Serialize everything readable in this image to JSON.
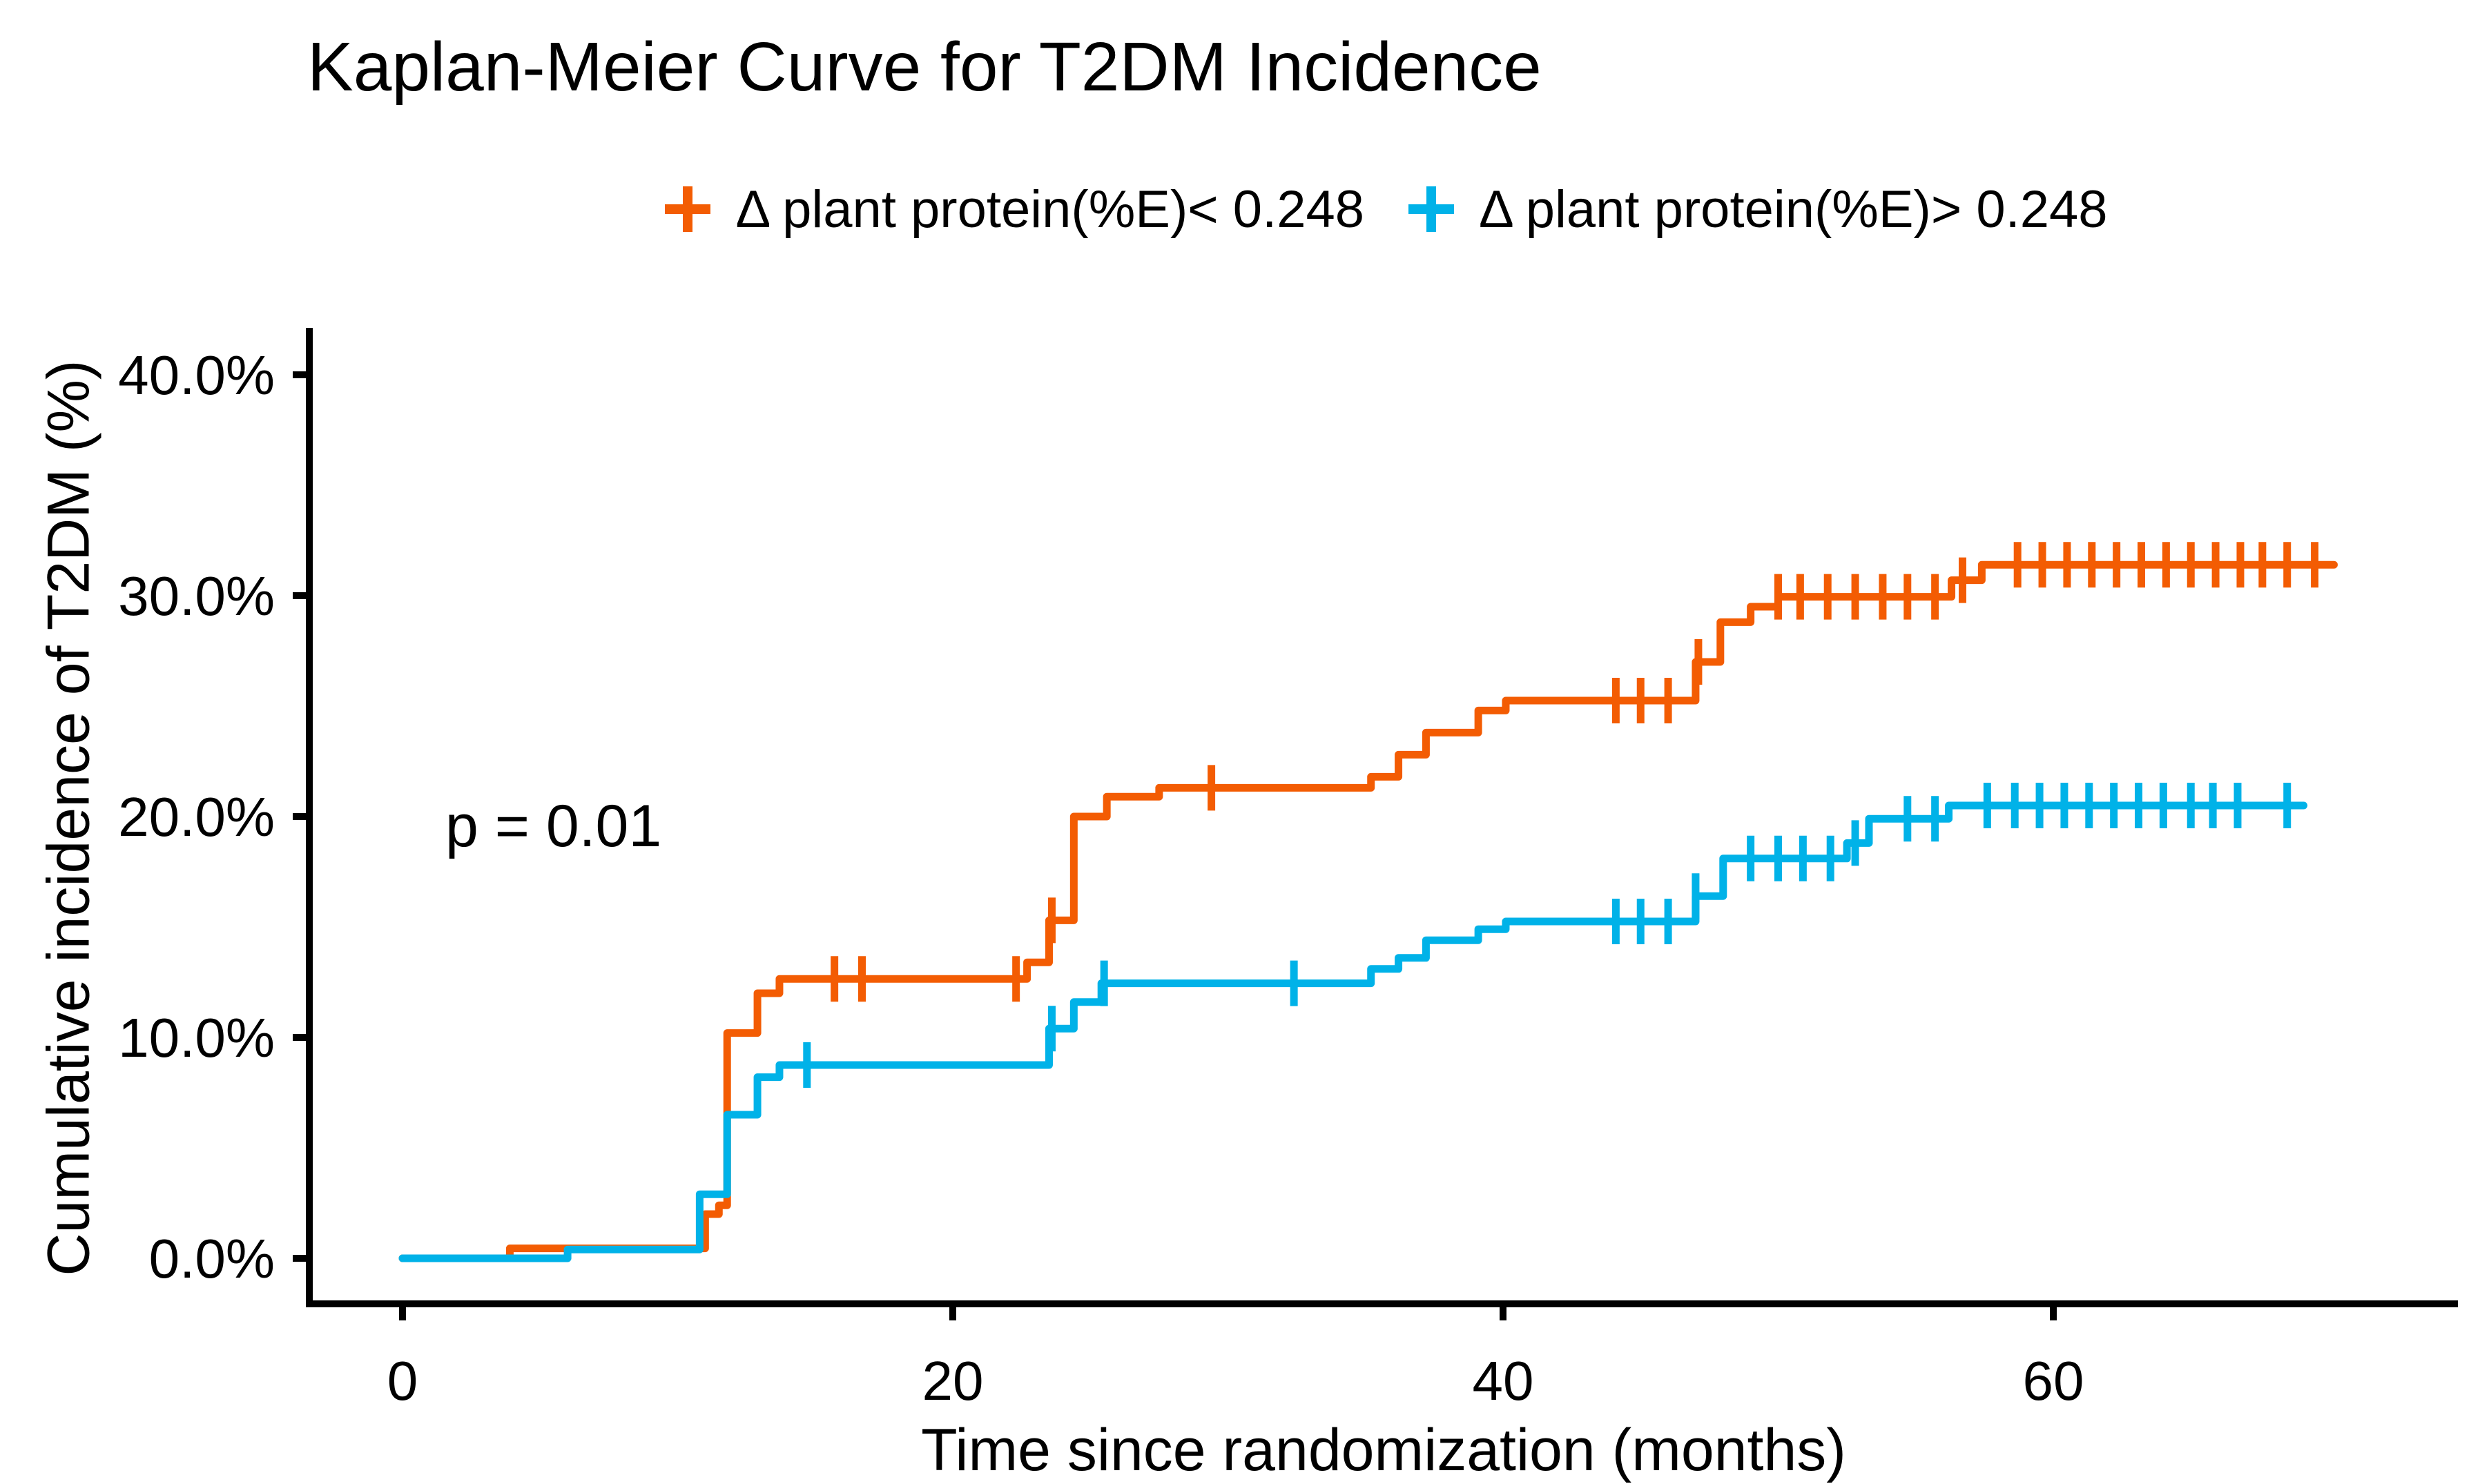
{
  "figure": {
    "title": "Kaplan-Meier Curve for T2DM Incidence",
    "p_value_label": "p = 0.01",
    "background": "#FFFFFF",
    "axis_color": "#000000",
    "text_color": "#000000"
  },
  "chart_data": {
    "type": "line",
    "subtype": "kaplan-meier-step-curve",
    "title": "Kaplan-Meier Curve for T2DM Incidence",
    "xlabel": "Time since randomization (months)",
    "ylabel": "Cumulative incidence of T2DM (%)",
    "xlim": [
      0,
      74
    ],
    "ylim": [
      0,
      42
    ],
    "grid": false,
    "legend_position": "top",
    "xticks": {
      "values": [
        0,
        20,
        40,
        60
      ],
      "labels": [
        "0",
        "20",
        "40",
        "60"
      ]
    },
    "yticks": {
      "values": [
        0,
        10,
        20,
        30,
        40
      ],
      "labels": [
        "0.0%",
        "10.0%",
        "20.0%",
        "30.0%",
        "40.0%"
      ]
    },
    "annotations": [
      {
        "text": "p = 0.01",
        "x_month": 1.6,
        "y_percent": 19.5
      }
    ],
    "series": [
      {
        "name": "Δ plant protein(%E)< 0.248",
        "color": "#F35C03",
        "marker": "plus-censor",
        "end_month": 70.2,
        "steps": [
          [
            0,
            0
          ],
          [
            3.9,
            0.45
          ],
          [
            11.0,
            2.0
          ],
          [
            11.5,
            2.4
          ],
          [
            11.8,
            10.2
          ],
          [
            12.9,
            12.0
          ],
          [
            13.7,
            12.65
          ],
          [
            22.7,
            13.4
          ],
          [
            23.5,
            15.3
          ],
          [
            24.4,
            20.0
          ],
          [
            25.6,
            20.9
          ],
          [
            27.5,
            21.3
          ],
          [
            35.2,
            21.8
          ],
          [
            36.2,
            22.8
          ],
          [
            37.2,
            23.8
          ],
          [
            39.1,
            24.8
          ],
          [
            40.1,
            25.25
          ],
          [
            47.0,
            27.0
          ],
          [
            47.9,
            28.8
          ],
          [
            49.0,
            29.5
          ],
          [
            50.0,
            29.95
          ],
          [
            56.3,
            30.7
          ],
          [
            57.4,
            31.4
          ]
        ],
        "censors": [
          [
            15.7,
            12.65
          ],
          [
            16.7,
            12.65
          ],
          [
            22.3,
            12.65
          ],
          [
            23.6,
            15.3
          ],
          [
            29.4,
            21.3
          ],
          [
            44.1,
            25.25
          ],
          [
            45.0,
            25.25
          ],
          [
            46.0,
            25.25
          ],
          [
            47.1,
            27.0
          ],
          [
            50.0,
            29.95
          ],
          [
            50.8,
            29.95
          ],
          [
            51.8,
            29.95
          ],
          [
            52.8,
            29.95
          ],
          [
            53.8,
            29.95
          ],
          [
            54.7,
            29.95
          ],
          [
            55.7,
            29.95
          ],
          [
            56.7,
            30.7
          ],
          [
            58.7,
            31.4
          ],
          [
            59.6,
            31.4
          ],
          [
            60.5,
            31.4
          ],
          [
            61.4,
            31.4
          ],
          [
            62.3,
            31.4
          ],
          [
            63.2,
            31.4
          ],
          [
            64.1,
            31.4
          ],
          [
            65.0,
            31.4
          ],
          [
            65.9,
            31.4
          ],
          [
            66.8,
            31.4
          ],
          [
            67.6,
            31.4
          ],
          [
            68.5,
            31.4
          ],
          [
            69.5,
            31.4
          ]
        ]
      },
      {
        "name": "Δ plant protein(%E)> 0.248",
        "color": "#00B2E8",
        "marker": "plus-censor",
        "end_month": 69.1,
        "steps": [
          [
            0,
            0
          ],
          [
            6.0,
            0.4
          ],
          [
            10.8,
            2.9
          ],
          [
            11.8,
            6.5
          ],
          [
            12.9,
            8.2
          ],
          [
            13.7,
            8.75
          ],
          [
            23.5,
            10.4
          ],
          [
            24.4,
            11.6
          ],
          [
            25.4,
            12.45
          ],
          [
            35.2,
            13.1
          ],
          [
            36.2,
            13.6
          ],
          [
            37.2,
            14.4
          ],
          [
            39.1,
            14.9
          ],
          [
            40.1,
            15.25
          ],
          [
            47.0,
            16.4
          ],
          [
            48.0,
            18.1
          ],
          [
            52.5,
            18.8
          ],
          [
            53.3,
            19.9
          ],
          [
            56.2,
            20.5
          ]
        ],
        "censors": [
          [
            14.7,
            8.75
          ],
          [
            23.6,
            10.4
          ],
          [
            25.5,
            12.45
          ],
          [
            32.4,
            12.45
          ],
          [
            44.1,
            15.25
          ],
          [
            45.0,
            15.25
          ],
          [
            46.0,
            15.25
          ],
          [
            47.0,
            16.4
          ],
          [
            49.0,
            18.1
          ],
          [
            50.0,
            18.1
          ],
          [
            50.9,
            18.1
          ],
          [
            51.9,
            18.1
          ],
          [
            52.8,
            18.8
          ],
          [
            54.7,
            19.9
          ],
          [
            55.7,
            19.9
          ],
          [
            57.6,
            20.5
          ],
          [
            58.6,
            20.5
          ],
          [
            59.5,
            20.5
          ],
          [
            60.4,
            20.5
          ],
          [
            61.3,
            20.5
          ],
          [
            62.2,
            20.5
          ],
          [
            63.1,
            20.5
          ],
          [
            64.0,
            20.5
          ],
          [
            65.0,
            20.5
          ],
          [
            65.8,
            20.5
          ],
          [
            66.7,
            20.5
          ],
          [
            68.5,
            20.5
          ]
        ]
      }
    ]
  }
}
